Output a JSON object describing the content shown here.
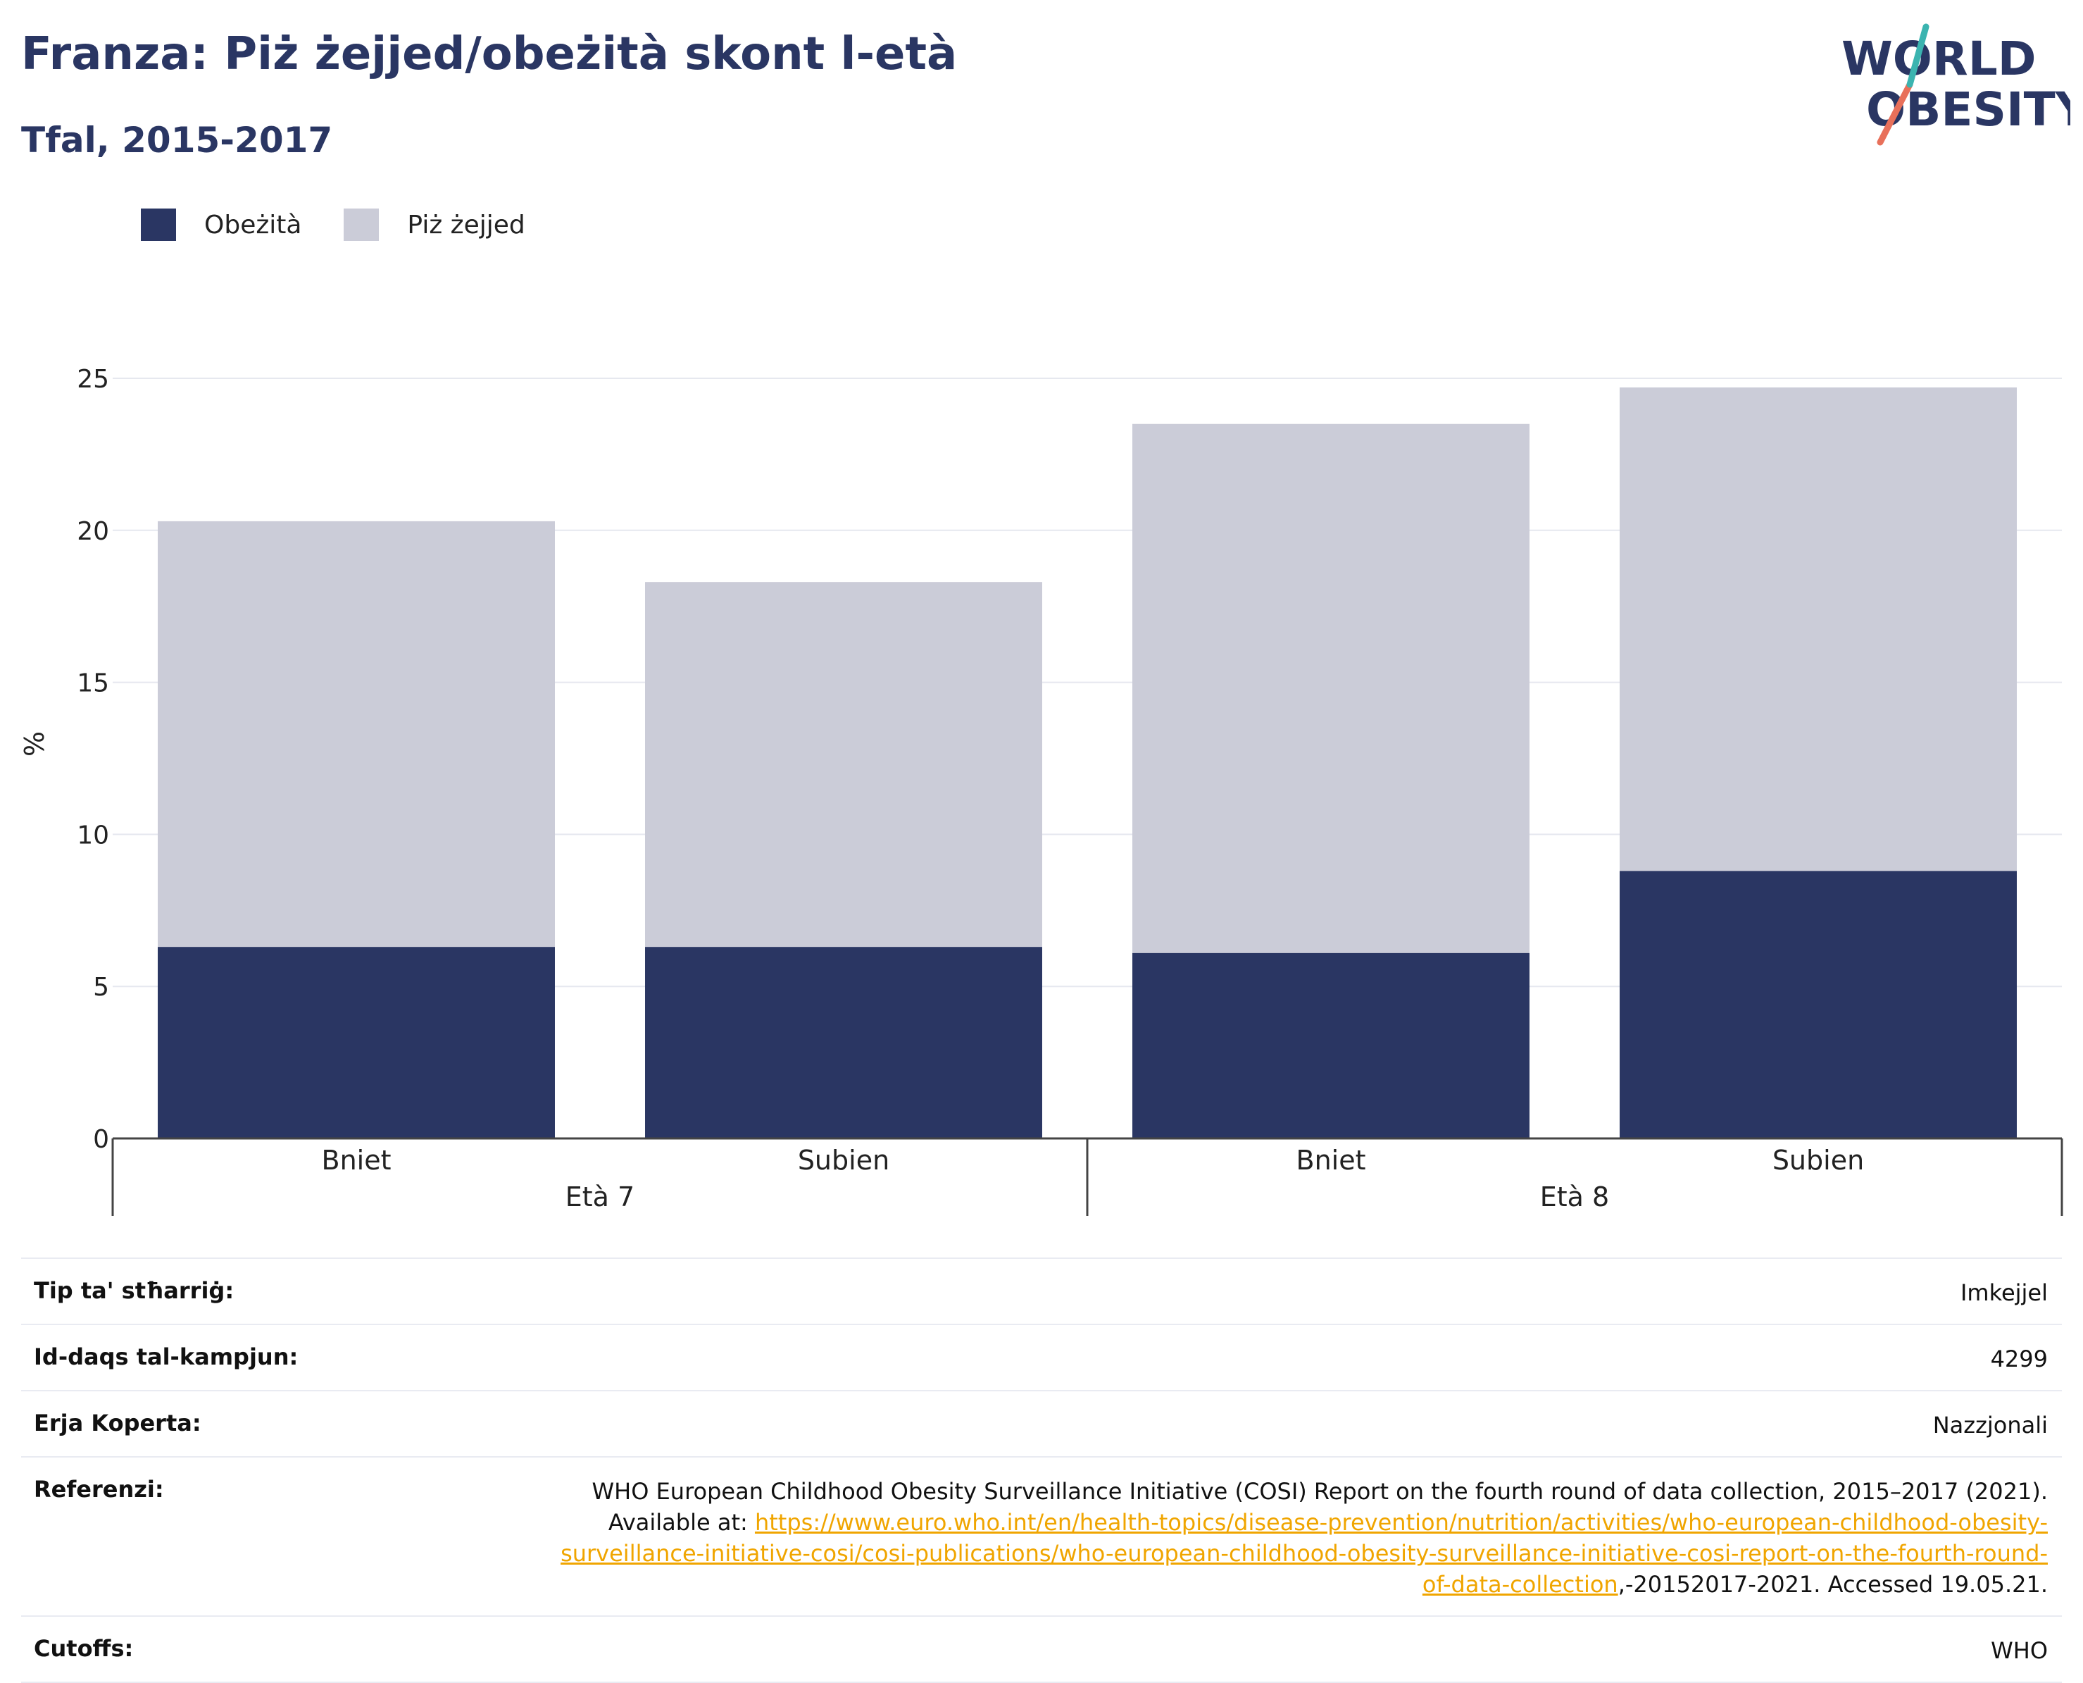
{
  "header": {
    "title": "Franza: Piż żejjed/obeżità skont l-età",
    "subtitle": "Tfal, 2015-2017"
  },
  "logo": {
    "line1": "WORLD",
    "line2": "OBESITY"
  },
  "colors": {
    "obesity": "#2a3663",
    "overweight": "#cbccd8",
    "title": "#2a3663",
    "link": "#f0a500"
  },
  "chart_data": {
    "type": "bar",
    "stacked": true,
    "categories": [
      "Bniet",
      "Subien",
      "Bniet",
      "Subien"
    ],
    "groups": [
      {
        "label": "Età 7",
        "categories": [
          "Bniet",
          "Subien"
        ]
      },
      {
        "label": "Età 8",
        "categories": [
          "Bniet",
          "Subien"
        ]
      }
    ],
    "series": [
      {
        "name": "Obeżità",
        "values": [
          6.3,
          6.3,
          6.1,
          8.8
        ]
      },
      {
        "name": "Piż żejjed",
        "values": [
          14.0,
          12.0,
          17.4,
          15.9
        ]
      }
    ],
    "ylabel": "%",
    "ylim": [
      0,
      25
    ],
    "yticks": [
      0,
      5,
      10,
      15,
      20,
      25
    ],
    "grid": true,
    "legend": "top-left"
  },
  "info": {
    "survey_type": {
      "label": "Tip ta' stħarriġ:",
      "value": "Imkejjel"
    },
    "sample_size": {
      "label": "Id-daqs tal-kampjun:",
      "value": "4299"
    },
    "coverage": {
      "label": "Erja Koperta:",
      "value": "Nazzjonali"
    },
    "references": {
      "label": "Referenzi:",
      "text_before": "WHO European Childhood Obesity Surveillance Initiative (COSI) Report on the fourth round of data collection, 2015–2017 (2021). Available at: ",
      "link": "https://www.euro.who.int/en/health-topics/disease-prevention/nutrition/activities/who-european-childhood-obesity-surveillance-initiative-cosi/cosi-publications/who-european-childhood-obesity-surveillance-initiative-cosi-report-on-the-fourth-round-of-data-collection",
      "text_after": ",-20152017-2021. Accessed 19.05.21."
    },
    "cutoffs": {
      "label": "Cutoffs:",
      "value": "WHO"
    }
  }
}
